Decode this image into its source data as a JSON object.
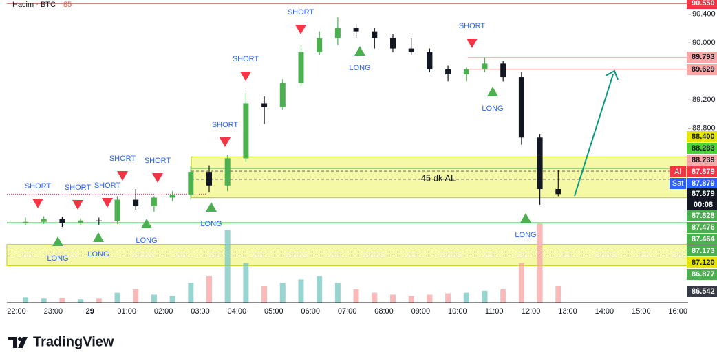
{
  "chart_data": {
    "type": "candlestick",
    "legend": {
      "name": "Hacim · BTC",
      "value": "85"
    },
    "annotation": "45 dk AL",
    "brand": "TradingView",
    "ylim": [
      86.36,
      90.6
    ],
    "yticks": [
      {
        "value": 90.4,
        "label": "90.400"
      },
      {
        "value": 90.0,
        "label": "90.000"
      },
      {
        "value": 89.2,
        "label": "89.200"
      },
      {
        "value": 88.8,
        "label": "88.800"
      }
    ],
    "xticks": [
      "22:00",
      "23:00",
      "29",
      "01:00",
      "02:00",
      "03:00",
      "04:00",
      "05:00",
      "06:00",
      "07:00",
      "08:00",
      "09:00",
      "10:00",
      "11:00",
      "12:00",
      "13:00",
      "14:00",
      "15:00",
      "16:00"
    ],
    "x": [
      "22:00",
      "22:30",
      "23:00",
      "23:30",
      "00:00",
      "00:30",
      "01:00",
      "01:30",
      "02:00",
      "02:30",
      "03:00",
      "03:30",
      "04:00",
      "04:30",
      "05:00",
      "05:30",
      "06:00",
      "06:30",
      "07:00",
      "07:30",
      "08:00",
      "08:30",
      "09:00",
      "09:30",
      "10:00",
      "10:30",
      "11:00",
      "11:30",
      "12:00",
      "12:30"
    ],
    "open": [
      87.49,
      87.49,
      87.53,
      87.47,
      87.51,
      87.5,
      87.8,
      87.71,
      87.83,
      87.87,
      88.19,
      88.0,
      88.38,
      89.15,
      89.1,
      89.44,
      89.87,
      90.07,
      90.21,
      90.16,
      90.07,
      89.92,
      89.87,
      89.63,
      89.56,
      89.63,
      89.71,
      89.52,
      88.67,
      87.95
    ],
    "high": [
      87.55,
      87.57,
      87.56,
      87.54,
      87.55,
      87.85,
      87.95,
      87.85,
      87.92,
      88.27,
      88.28,
      88.43,
      89.3,
      89.25,
      89.49,
      89.97,
      90.16,
      90.36,
      90.26,
      90.21,
      90.12,
      90.07,
      89.92,
      89.68,
      89.65,
      89.79,
      89.75,
      89.59,
      88.72,
      88.21
    ],
    "low": [
      87.44,
      87.46,
      87.42,
      87.45,
      87.45,
      87.46,
      87.66,
      87.63,
      87.78,
      87.8,
      87.9,
      87.92,
      88.33,
      88.86,
      89.06,
      89.39,
      89.83,
      89.97,
      90.07,
      89.92,
      89.87,
      89.83,
      89.59,
      89.46,
      89.46,
      89.59,
      89.46,
      88.57,
      87.73,
      87.85
    ],
    "close": [
      87.49,
      87.53,
      87.47,
      87.51,
      87.5,
      87.8,
      87.71,
      87.83,
      87.87,
      88.19,
      88.0,
      88.38,
      89.15,
      89.1,
      89.44,
      89.87,
      90.07,
      90.21,
      90.16,
      90.07,
      89.92,
      89.87,
      89.63,
      89.56,
      89.63,
      89.71,
      89.52,
      88.67,
      87.95,
      87.88
    ],
    "volume": [
      8,
      6,
      7,
      5,
      6,
      15,
      20,
      12,
      10,
      30,
      40,
      110,
      60,
      25,
      30,
      35,
      40,
      30,
      20,
      15,
      12,
      10,
      12,
      14,
      15,
      18,
      20,
      60,
      120,
      25
    ],
    "up_color": "#4caf50",
    "down_color": "#131722",
    "price_labels": [
      {
        "value": 90.55,
        "label": "90.550",
        "color": "#f23645",
        "text_color": "#ffffff"
      },
      {
        "value": 89.793,
        "label": "89.793",
        "color": "#f7a9a7",
        "text_color": "#131722"
      },
      {
        "value": 89.629,
        "label": "89.629",
        "color": "#f7a9a7",
        "text_color": "#131722"
      },
      {
        "value": 88.4,
        "label": "88.400",
        "color": "#e5e500",
        "text_color": "#131722"
      },
      {
        "value": 88.283,
        "label": "88.283",
        "color": "#4cd137",
        "text_color": "#131722"
      },
      {
        "value": 88.239,
        "label": "88.239",
        "color": "#f7a9a7",
        "text_color": "#131722"
      },
      {
        "value": 87.879,
        "label": "87.879",
        "color": "#f23645",
        "text_color": "#ffffff",
        "tag": "Al"
      },
      {
        "value": 87.879,
        "label": "87.879",
        "color": "#2962ff",
        "text_color": "#ffffff",
        "tag": "Sat"
      },
      {
        "value": 87.879,
        "label": "87.879",
        "color": "#131722",
        "text_color": "#ffffff",
        "sub": "00:08"
      },
      {
        "value": 87.828,
        "label": "87.828",
        "color": "#4caf50",
        "text_color": "#ffffff"
      },
      {
        "value": 87.476,
        "label": "87.476",
        "color": "#4caf50",
        "text_color": "#ffffff"
      },
      {
        "value": 87.464,
        "label": "87.464",
        "color": "#4caf50",
        "text_color": "#ffffff"
      },
      {
        "value": 87.173,
        "label": "87.173",
        "color": "#4caf50",
        "text_color": "#ffffff"
      },
      {
        "value": 87.12,
        "label": "87.120",
        "color": "#e5e500",
        "text_color": "#131722"
      },
      {
        "value": 86.877,
        "label": "86.877",
        "color": "#4caf50",
        "text_color": "#ffffff"
      },
      {
        "value": 86.542,
        "label": "86.542",
        "color": "#363a45",
        "text_color": "#ffffff"
      }
    ],
    "signals": [
      "SHORT",
      "SHORT",
      "SHORT",
      "SHORT",
      "SHORT",
      "SHORT",
      "SHORT",
      "SHORT",
      "SHORT",
      "LONG",
      "LONG",
      "LONG",
      "LONG",
      "LONG",
      "LONG",
      "LONG"
    ]
  }
}
